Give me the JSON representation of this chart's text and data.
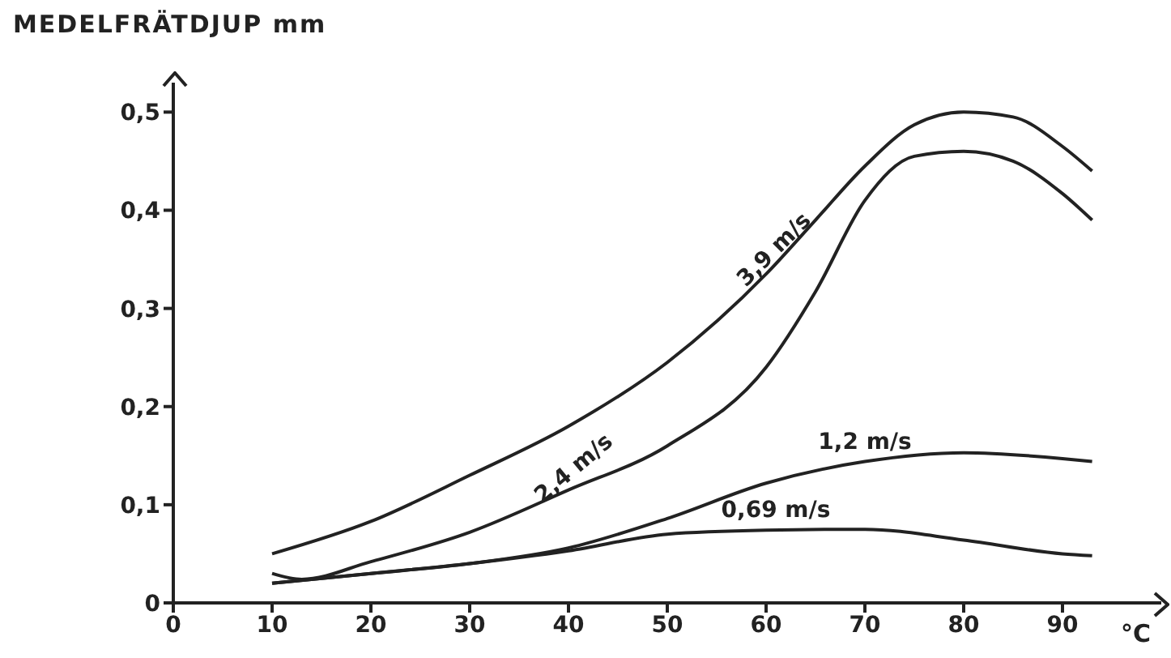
{
  "chart_data": {
    "type": "line",
    "xlabel": "°C",
    "ylabel": "MEDELFRÄTDJUP mm",
    "xlim": [
      0,
      100
    ],
    "xticks": [
      0,
      10,
      20,
      30,
      40,
      50,
      60,
      70,
      80,
      90
    ],
    "ylim": [
      0,
      0.53
    ],
    "yticks": [
      0,
      {
        "value": 0.1,
        "label": "0,1"
      },
      {
        "value": 0.2,
        "label": "0,2"
      },
      {
        "value": 0.3,
        "label": "0,3"
      },
      {
        "value": 0.4,
        "label": "0,4"
      },
      {
        "value": 0.5,
        "label": "0,5"
      }
    ],
    "grid": false,
    "legend": false,
    "marker": "none",
    "line_style": "solid",
    "series": [
      {
        "name": "3,9 m/s",
        "color": "#222222",
        "x": [
          10,
          20,
          30,
          40,
          50,
          60,
          65,
          70,
          75,
          80,
          85,
          90,
          93
        ],
        "values": [
          0.05,
          0.083,
          0.13,
          0.18,
          0.245,
          0.335,
          0.39,
          0.445,
          0.487,
          0.5,
          0.495,
          0.465,
          0.44
        ]
      },
      {
        "name": "2,4 m/s",
        "color": "#222222",
        "x": [
          10,
          13,
          20,
          30,
          40,
          50,
          60,
          65,
          70,
          75,
          80,
          85,
          90,
          93
        ],
        "values": [
          0.03,
          0.024,
          0.042,
          0.072,
          0.115,
          0.16,
          0.24,
          0.317,
          0.41,
          0.455,
          0.46,
          0.45,
          0.417,
          0.39
        ]
      },
      {
        "name": "1,2 m/s",
        "color": "#222222",
        "x": [
          10,
          20,
          30,
          40,
          50,
          60,
          70,
          80,
          90,
          93
        ],
        "values": [
          0.02,
          0.03,
          0.04,
          0.056,
          0.086,
          0.122,
          0.144,
          0.153,
          0.147,
          0.144
        ]
      },
      {
        "name": "0,69 m/s",
        "color": "#222222",
        "x": [
          10,
          20,
          30,
          40,
          50,
          60,
          70,
          80,
          90,
          93
        ],
        "values": [
          0.02,
          0.03,
          0.04,
          0.053,
          0.07,
          0.074,
          0.075,
          0.064,
          0.05,
          0.048
        ]
      }
    ]
  }
}
